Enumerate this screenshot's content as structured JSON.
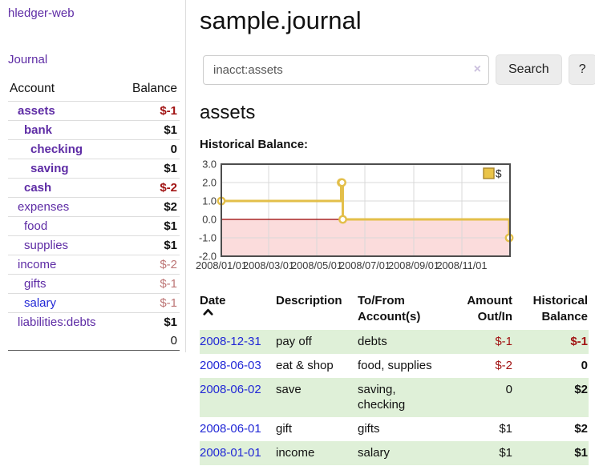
{
  "app": {
    "brand": "hledger-web",
    "nav_journal": "Journal"
  },
  "colors": {
    "purple_link": "#5e2ca5",
    "blue_link": "#2228d6",
    "strong_negative": "#a11313",
    "soft_negative": "#bd7575",
    "row_green": "#dff0d8",
    "chart_gold": "#e3bf4a",
    "negative_region": "#fbdcdc",
    "zero_line": "#990000"
  },
  "sidebar": {
    "columns": {
      "account": "Account",
      "balance": "Balance"
    },
    "accounts": [
      {
        "name": "assets",
        "balance": "$-1",
        "level": 1,
        "in_account": true
      },
      {
        "name": "bank",
        "balance": "$1",
        "level": 2,
        "in_account": true
      },
      {
        "name": "checking",
        "balance": "0",
        "level": 3,
        "in_account": true
      },
      {
        "name": "saving",
        "balance": "$1",
        "level": 3,
        "in_account": true
      },
      {
        "name": "cash",
        "balance": "$-2",
        "level": 2,
        "in_account": true
      },
      {
        "name": "expenses",
        "balance": "$2",
        "level": 1,
        "in_account": false
      },
      {
        "name": "food",
        "balance": "$1",
        "level": 2,
        "in_account": false
      },
      {
        "name": "supplies",
        "balance": "$1",
        "level": 2,
        "in_account": false
      },
      {
        "name": "income",
        "balance": "$-2",
        "level": 1,
        "in_account": false
      },
      {
        "name": "gifts",
        "balance": "$-1",
        "level": 2,
        "in_account": false
      },
      {
        "name": "salary",
        "balance": "$-1",
        "level": 2,
        "in_account": false,
        "blue_link": true
      },
      {
        "name": "liabilities:debts",
        "balance": "$1",
        "level": 1,
        "in_account": false
      }
    ],
    "total": "0"
  },
  "header": {
    "title": "sample.journal"
  },
  "search": {
    "value": "inacct:assets",
    "clear": "×",
    "button_label": "Search",
    "help_label": "?"
  },
  "account_page": {
    "heading": "assets",
    "chart_label": "Historical Balance:"
  },
  "chart_data": {
    "type": "line",
    "step": true,
    "title": "Historical Balance:",
    "series": [
      {
        "name": "$",
        "points": [
          [
            "2008-01-01",
            1
          ],
          [
            "2008-06-01",
            2
          ],
          [
            "2008-06-02",
            2
          ],
          [
            "2008-06-03",
            0
          ],
          [
            "2008-12-31",
            -1
          ]
        ]
      }
    ],
    "ylim": [
      -2,
      3
    ],
    "yticks": [
      "3.0",
      "2.0",
      "1.0",
      "0.0",
      "-1.0",
      "-2.0"
    ],
    "xticks": [
      "2008/01/01",
      "2008/03/01",
      "2008/05/01",
      "2008/07/01",
      "2008/09/01",
      "2008/11/01"
    ],
    "x_start": "2008/01/01",
    "x_end": "2009/01/01",
    "grid": true,
    "legend_position": "top-right",
    "negative_region_shaded": true
  },
  "register": {
    "headers": [
      "Date",
      "Description",
      "To/From Account(s)",
      "Amount Out/In",
      "Historical Balance"
    ],
    "rows": [
      {
        "date": "2008-12-31",
        "description": "pay off",
        "accounts": "debts",
        "amount": "$-1",
        "balance": "$-1"
      },
      {
        "date": "2008-06-03",
        "description": "eat & shop",
        "accounts": "food, supplies",
        "amount": "$-2",
        "balance": "0"
      },
      {
        "date": "2008-06-02",
        "description": "save",
        "accounts": "saving, checking",
        "amount": "0",
        "balance": "$2"
      },
      {
        "date": "2008-06-01",
        "description": "gift",
        "accounts": "gifts",
        "amount": "$1",
        "balance": "$2"
      },
      {
        "date": "2008-01-01",
        "description": "income",
        "accounts": "salary",
        "amount": "$1",
        "balance": "$1"
      }
    ]
  }
}
